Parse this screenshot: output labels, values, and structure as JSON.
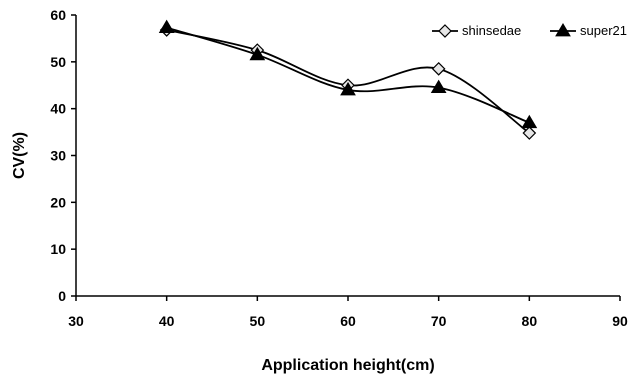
{
  "chart_data": {
    "type": "line",
    "title": "",
    "xlabel": "Application height(cm)",
    "ylabel": "CV(%)",
    "xlim": [
      30,
      90
    ],
    "ylim": [
      0,
      60
    ],
    "x_ticks": [
      30,
      40,
      50,
      60,
      70,
      80,
      90
    ],
    "y_ticks": [
      0,
      10,
      20,
      30,
      40,
      50,
      60
    ],
    "grid": false,
    "legend_position": "top-right",
    "series": [
      {
        "name": "shinsedae",
        "marker": "diamond",
        "color": "#000000",
        "x": [
          40,
          50,
          60,
          70,
          80
        ],
        "y": [
          56.8,
          52.5,
          45.0,
          48.5,
          34.8
        ]
      },
      {
        "name": "super21",
        "marker": "triangle",
        "color": "#000000",
        "x": [
          40,
          50,
          60,
          70,
          80
        ],
        "y": [
          57.3,
          51.5,
          44.0,
          44.5,
          37.0
        ]
      }
    ]
  }
}
